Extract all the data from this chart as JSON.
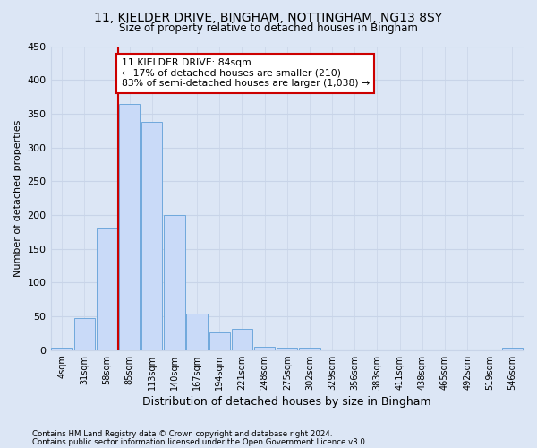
{
  "title1": "11, KIELDER DRIVE, BINGHAM, NOTTINGHAM, NG13 8SY",
  "title2": "Size of property relative to detached houses in Bingham",
  "xlabel": "Distribution of detached houses by size in Bingham",
  "ylabel": "Number of detached properties",
  "footer1": "Contains HM Land Registry data © Crown copyright and database right 2024.",
  "footer2": "Contains public sector information licensed under the Open Government Licence v3.0.",
  "bin_labels": [
    "4sqm",
    "31sqm",
    "58sqm",
    "85sqm",
    "113sqm",
    "140sqm",
    "167sqm",
    "194sqm",
    "221sqm",
    "248sqm",
    "275sqm",
    "302sqm",
    "329sqm",
    "356sqm",
    "383sqm",
    "411sqm",
    "438sqm",
    "465sqm",
    "492sqm",
    "519sqm",
    "546sqm"
  ],
  "bar_values": [
    3,
    48,
    180,
    365,
    338,
    200,
    54,
    26,
    32,
    5,
    3,
    3,
    0,
    0,
    0,
    0,
    0,
    0,
    0,
    0,
    3
  ],
  "bar_color": "#c9daf8",
  "bar_edge_color": "#6fa8dc",
  "vline_color": "#cc0000",
  "annotation_text": "11 KIELDER DRIVE: 84sqm\n← 17% of detached houses are smaller (210)\n83% of semi-detached houses are larger (1,038) →",
  "annotation_box_color": "#ffffff",
  "annotation_box_edge_color": "#cc0000",
  "grid_color": "#c8d4e8",
  "background_color": "#dce6f5",
  "ylim": [
    0,
    450
  ],
  "yticks": [
    0,
    50,
    100,
    150,
    200,
    250,
    300,
    350,
    400,
    450
  ]
}
